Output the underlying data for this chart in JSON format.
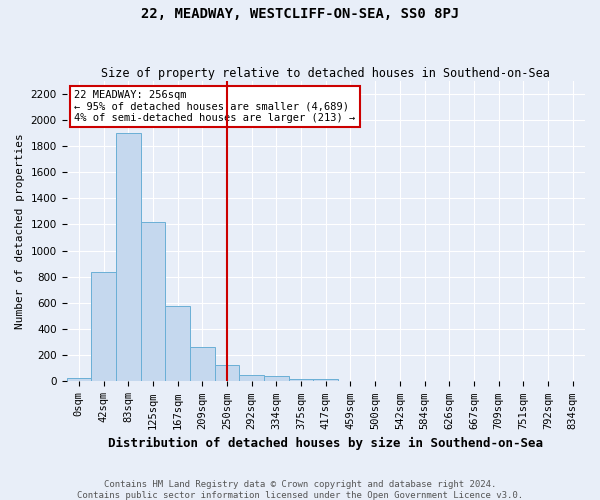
{
  "title": "22, MEADWAY, WESTCLIFF-ON-SEA, SS0 8PJ",
  "subtitle": "Size of property relative to detached houses in Southend-on-Sea",
  "xlabel": "Distribution of detached houses by size in Southend-on-Sea",
  "ylabel": "Number of detached properties",
  "footnote1": "Contains HM Land Registry data © Crown copyright and database right 2024.",
  "footnote2": "Contains public sector information licensed under the Open Government Licence v3.0.",
  "bar_labels": [
    "0sqm",
    "42sqm",
    "83sqm",
    "125sqm",
    "167sqm",
    "209sqm",
    "250sqm",
    "292sqm",
    "334sqm",
    "375sqm",
    "417sqm",
    "459sqm",
    "500sqm",
    "542sqm",
    "584sqm",
    "626sqm",
    "667sqm",
    "709sqm",
    "751sqm",
    "792sqm",
    "834sqm"
  ],
  "bar_values": [
    25,
    840,
    1900,
    1220,
    575,
    260,
    125,
    50,
    40,
    20,
    15,
    0,
    0,
    0,
    0,
    0,
    0,
    0,
    0,
    0,
    0
  ],
  "bar_color": "#c5d8ee",
  "bar_edge_color": "#6aafd6",
  "property_label": "22 MEADWAY: 256sqm",
  "annotation_line1": "← 95% of detached houses are smaller (4,689)",
  "annotation_line2": "4% of semi-detached houses are larger (213) →",
  "vline_color": "#cc0000",
  "vline_bin_index": 6,
  "annotation_box_color": "#ffffff",
  "annotation_box_edge_color": "#cc0000",
  "ylim": [
    0,
    2300
  ],
  "yticks": [
    0,
    200,
    400,
    600,
    800,
    1000,
    1200,
    1400,
    1600,
    1800,
    2000,
    2200
  ],
  "background_color": "#e8eef8",
  "plot_bg_color": "#e8eef8",
  "grid_color": "#ffffff",
  "title_fontsize": 10,
  "subtitle_fontsize": 8.5,
  "xlabel_fontsize": 9,
  "ylabel_fontsize": 8,
  "tick_fontsize": 7.5,
  "annot_fontsize": 7.5,
  "footnote_fontsize": 6.5
}
